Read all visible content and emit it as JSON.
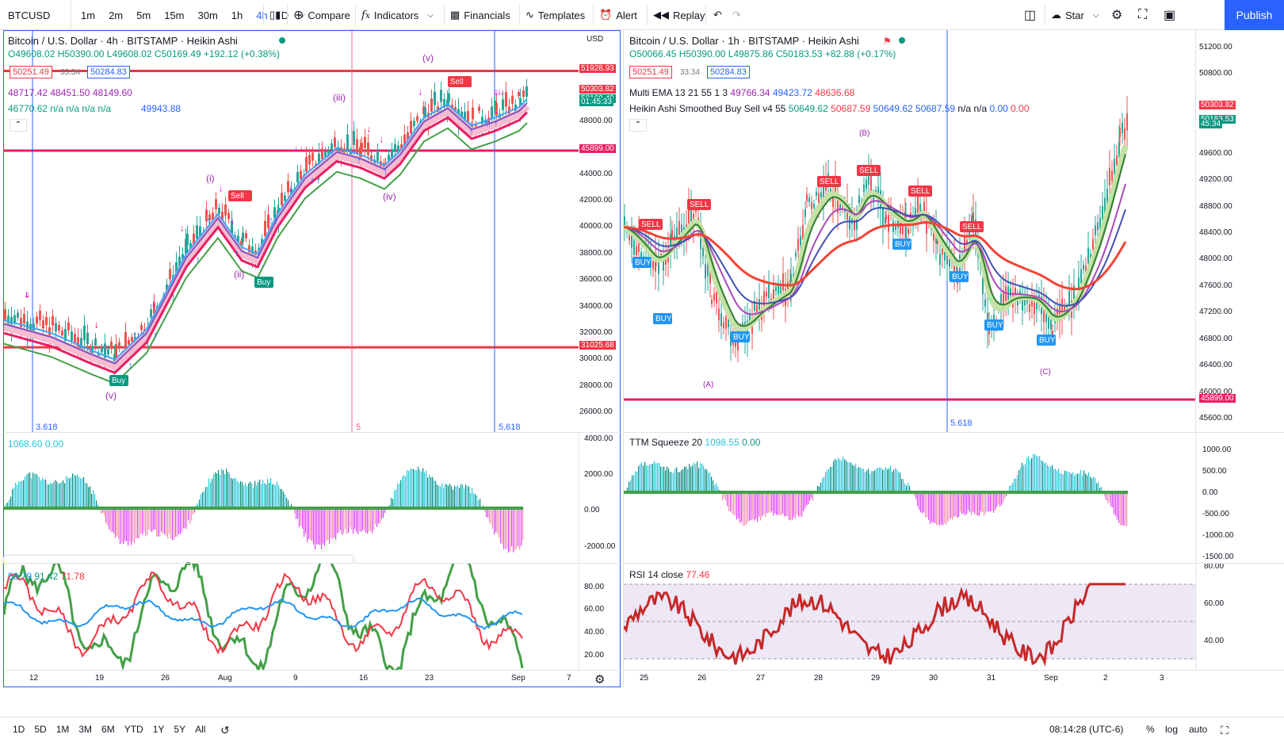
{
  "toolbar": {
    "symbol": "BTCUSD",
    "intervals": [
      "1m",
      "2m",
      "5m",
      "15m",
      "30m",
      "1h",
      "4h",
      "D"
    ],
    "active_interval": "4h",
    "compare": "Compare",
    "indicators": "Indicators",
    "financials": "Financials",
    "templates": "Templates",
    "alert": "Alert",
    "replay": "Replay",
    "star": "Star",
    "publish": "Publish"
  },
  "left_chart": {
    "title": "Bitcoin / U.S. Dollar · 4h · BITSTAMP · Heikin Ashi",
    "ohlc": "O49608.02 H50390.00 L49608.02 C50169.49 +192.12 (+0.38%)",
    "bid": "50251.49",
    "spread": "33.34",
    "ask": "50284.83",
    "ind1": "48717.42  48451.50  48149.60",
    "ind2": "46770.62  n/a  n/a  n/a  n/a",
    "ind2_val": "49943.88",
    "currency": "USD",
    "price_labels": [
      "51928.93",
      "50303.82",
      "50169.49",
      "01:45:33",
      "48000.00",
      "45899.00",
      "44000.00",
      "42000.00",
      "40000.00",
      "38000.00",
      "36000.00",
      "34000.00",
      "32000.00",
      "31025.68",
      "30000.00",
      "28000.00",
      "26000.00"
    ],
    "fib_labels": [
      "3.618",
      "5",
      "5.618"
    ],
    "squeeze_vals": "1068.60  0.00",
    "squeeze_axis": [
      "4000.00",
      "2000.00",
      "0.00",
      "-2000.00"
    ],
    "rsi_vals": [
      "59.79",
      "91.42",
      "71.78"
    ],
    "rsi_axis": [
      "80.00",
      "60.00",
      "40.00",
      "20.00"
    ],
    "dates": [
      "12",
      "19",
      "26",
      "Aug",
      "9",
      "16",
      "23",
      "Sep",
      "7"
    ],
    "wave_labels": [
      "(i)",
      "(ii)",
      "(iii)",
      "(iv)",
      "(v)",
      "(v)"
    ],
    "signals": [
      "Sell",
      "Sell",
      "Buy",
      "Buy"
    ]
  },
  "right_chart": {
    "title": "Bitcoin / U.S. Dollar · 1h · BITSTAMP · Heikin Ashi",
    "ohlc": "O50066.45 H50390.00 L49875.86 C50183.53 +82.88 (+0.17%)",
    "bid": "50251.49",
    "spread": "33.34",
    "ask": "50284.83",
    "ema_line": "Multi EMA 13 21 55 1 3",
    "ema_vals": [
      "49766.34",
      "49423.72",
      "48636.68"
    ],
    "has_line": "Heikin Ashi Smoothed Buy Sell v4 55",
    "has_vals": [
      "50649.62",
      "50687.59",
      "50649.62",
      "50687.59",
      "n/a  n/a",
      "0.00",
      "0.00"
    ],
    "price_labels": [
      "51200.00",
      "50800.00",
      "50303.82",
      "50183.53",
      "45:34",
      "49600.00",
      "49200.00",
      "48800.00",
      "48400.00",
      "48000.00",
      "47600.00",
      "47200.00",
      "46800.00",
      "46400.00",
      "46000.00",
      "45899.00",
      "45600.00"
    ],
    "fib_label": "5.618",
    "squeeze_title": "TTM Squeeze 20",
    "squeeze_vals": [
      "1098.55",
      "0.00"
    ],
    "squeeze_axis": [
      "1000.00",
      "500.00",
      "0.00",
      "-500.00",
      "-1000.00",
      "-1500.00"
    ],
    "rsi_title": "RSI 14 close",
    "rsi_val": "77.46",
    "rsi_axis": [
      "80.00",
      "60.00",
      "40.00"
    ],
    "dates": [
      "25",
      "26",
      "27",
      "28",
      "29",
      "30",
      "31",
      "Sep",
      "2",
      "3"
    ],
    "wave_labels": [
      "(A)",
      "(B)",
      "(C)"
    ],
    "signals": [
      "SELL",
      "SELL",
      "SELL",
      "SELL",
      "SELL",
      "SELL",
      "BUY",
      "BUY",
      "BUY",
      "BUY",
      "BUY",
      "BUY",
      "BUY"
    ]
  },
  "bottom": {
    "ranges": [
      "1D",
      "5D",
      "1M",
      "3M",
      "6M",
      "YTD",
      "1Y",
      "5Y",
      "All"
    ],
    "clock": "08:14:28 (UTC-6)",
    "percent": "%",
    "log": "log",
    "auto": "auto"
  },
  "colors": {
    "accent": "#2962ff",
    "red": "#f23645",
    "green": "#089981",
    "teal": "#26c6da",
    "magenta": "#e040fb"
  }
}
